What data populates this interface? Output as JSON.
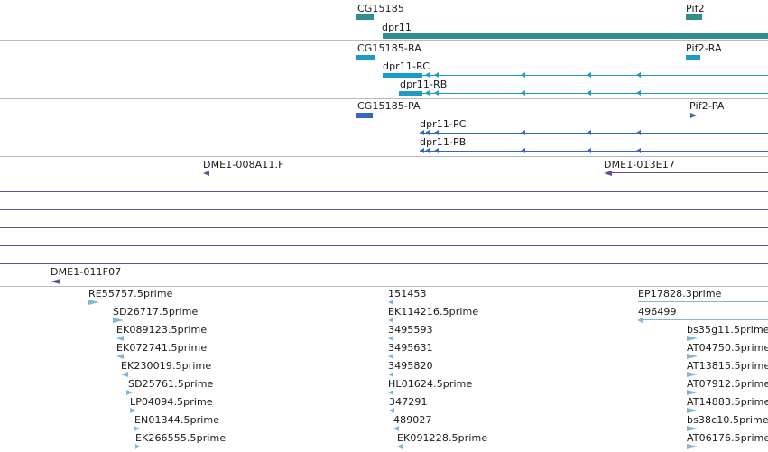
{
  "colors": {
    "gene": "#2f8f8f",
    "mrna": "#1a9cc4",
    "cds": "#3566c6",
    "clone": "#6a4ba0",
    "est": "#7fb8dc",
    "separator": "#b9b9c8"
  },
  "gene_track": {
    "labels": [
      "CG15185",
      "Pif2",
      "dpr11"
    ]
  },
  "mrna_track": {
    "labels": [
      "CG15185-RA",
      "Pif2-RA",
      "dpr11-RC",
      "dpr11-RB"
    ]
  },
  "cds_track": {
    "labels": [
      "CG15185-PA",
      "Pif2-PA",
      "dpr11-PC",
      "dpr11-PB"
    ]
  },
  "clone_track": {
    "labels": [
      "DME1-008A11.F",
      "DME1-013E17",
      "DME1-011F07"
    ]
  },
  "est_track": {
    "col1": [
      "RE55757.5prime",
      "SD26717.5prime",
      "EK089123.5prime",
      "EK072741.5prime",
      "EK230019.5prime",
      "SD25761.5prime",
      "LP04094.5prime",
      "EN01344.5prime",
      "EK266555.5prime"
    ],
    "col2": [
      "151453",
      "EK114216.5prime",
      "3495593",
      "3495631",
      "3495820",
      "HL01624.5prime",
      "347291",
      "489027",
      "EK091228.5prime"
    ],
    "col3": [
      "EP17828.3prime",
      "496499",
      "bs35g11.5prime",
      "AT04750.5prime",
      "AT13815.5prime",
      "AT07912.5prime",
      "AT14883.5prime",
      "bs38c10.5prime",
      "AT06176.5prime"
    ]
  }
}
